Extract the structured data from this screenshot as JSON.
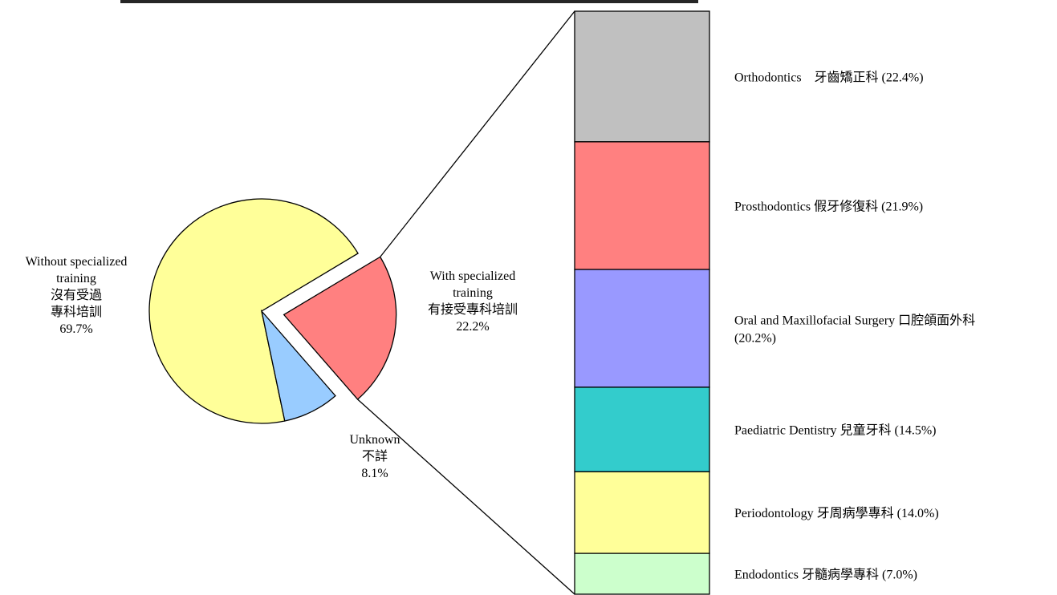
{
  "chart_data": {
    "type": "pie",
    "title": "",
    "pie": {
      "slices": [
        {
          "label_lines": [
            "Without specialized",
            "training",
            "沒有受過",
            "專科培訓",
            "69.7%"
          ],
          "value": 69.7,
          "color": "#ffff99",
          "exploded": false
        },
        {
          "label_lines": [
            "With specialized",
            "training",
            "有接受專科培訓",
            "22.2%"
          ],
          "value": 22.2,
          "color": "#ff8080",
          "exploded": true
        },
        {
          "label_lines": [
            "Unknown",
            "不詳",
            "8.1%"
          ],
          "value": 8.1,
          "color": "#99ccff",
          "exploded": false
        }
      ]
    },
    "breakdown": {
      "parent": "With specialized training",
      "segments": [
        {
          "label_lines": [
            "Orthodontics　牙齒矯正科 (22.4%)"
          ],
          "value": 22.4,
          "color": "#c0c0c0"
        },
        {
          "label_lines": [
            "Prosthodontics 假牙修復科 (21.9%)"
          ],
          "value": 21.9,
          "color": "#ff8080"
        },
        {
          "label_lines": [
            "Oral and Maxillofacial Surgery 口腔頜面外科",
            "(20.2%)"
          ],
          "value": 20.2,
          "color": "#9999ff"
        },
        {
          "label_lines": [
            "Paediatric Dentistry 兒童牙科 (14.5%)"
          ],
          "value": 14.5,
          "color": "#33cccc"
        },
        {
          "label_lines": [
            "Periodontology 牙周病學專科 (14.0%)"
          ],
          "value": 14.0,
          "color": "#ffff99"
        },
        {
          "label_lines": [
            "Endodontics 牙髓病學專科 (7.0%)"
          ],
          "value": 7.0,
          "color": "#ccffcc"
        }
      ]
    }
  }
}
